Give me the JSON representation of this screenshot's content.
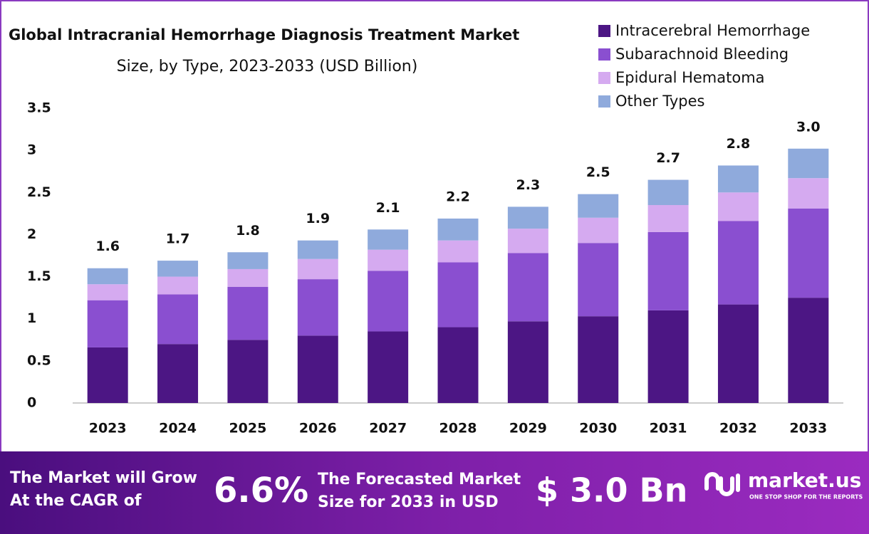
{
  "chart_data": {
    "type": "stacked-bar",
    "title": "Global Intracranial Hemorrhage Diagnosis Treatment  Market",
    "subtitle": "Size, by Type, 2023-2033 (USD Billion)",
    "categories": [
      "2023",
      "2024",
      "2025",
      "2026",
      "2027",
      "2028",
      "2029",
      "2030",
      "2031",
      "2032",
      "2033"
    ],
    "series": [
      {
        "name": "Intracerebral Hemorrhage",
        "color": "#4c1684",
        "values": [
          0.66,
          0.7,
          0.75,
          0.8,
          0.85,
          0.9,
          0.97,
          1.03,
          1.1,
          1.17,
          1.25
        ]
      },
      {
        "name": "Subarachnoid Bleeding",
        "color": "#8a4fd0",
        "values": [
          0.56,
          0.59,
          0.63,
          0.67,
          0.72,
          0.77,
          0.81,
          0.87,
          0.93,
          0.99,
          1.06
        ]
      },
      {
        "name": "Epidural Hematoma",
        "color": "#d5aaf0",
        "values": [
          0.19,
          0.21,
          0.21,
          0.24,
          0.25,
          0.26,
          0.29,
          0.3,
          0.32,
          0.34,
          0.36
        ]
      },
      {
        "name": "Other Types",
        "color": "#8faadc",
        "values": [
          0.19,
          0.19,
          0.2,
          0.22,
          0.24,
          0.26,
          0.26,
          0.28,
          0.3,
          0.32,
          0.35
        ]
      }
    ],
    "totals": [
      1.6,
      1.7,
      1.8,
      1.9,
      2.1,
      2.2,
      2.3,
      2.5,
      2.7,
      2.8,
      {
        "value": 3.0,
        "label": "3.0"
      }
    ],
    "ylim": [
      0,
      3.5
    ],
    "yticks": [
      0,
      0.5,
      1,
      1.5,
      2,
      2.5,
      3,
      3.5
    ],
    "grid": false,
    "legend": "top-right"
  },
  "banner": {
    "cagr_text": [
      "The Market will Grow",
      "At the CAGR of"
    ],
    "cagr_value": "6.6%",
    "forecast_text": [
      "The Forecasted Market",
      "Size for 2033 in USD"
    ],
    "forecast_value": "$ 3.0 Bn",
    "brand": "market.us",
    "tagline": "ONE STOP SHOP FOR THE REPORTS"
  }
}
